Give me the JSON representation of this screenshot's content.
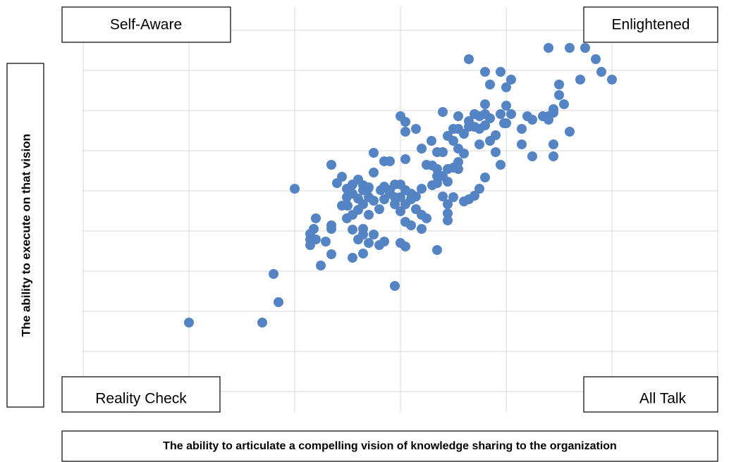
{
  "chart_data": {
    "type": "scatter",
    "xlabel": "The ability to articulate a compelling vision of knowledge sharing to the organization",
    "ylabel": "The ability to execute on that vision",
    "annotations": [
      "Self-Aware",
      "Enlightened",
      "Reality Check",
      "All Talk"
    ],
    "color": "#5584c4",
    "grid": true,
    "xlim": [
      0,
      900
    ],
    "xticks": [
      0,
      150,
      300,
      450,
      600,
      750,
      900
    ],
    "ylim": [
      0,
      513
    ],
    "yticks": [
      0,
      57,
      114,
      171,
      228,
      285,
      342,
      399,
      456,
      513
    ],
    "x": [
      150,
      254,
      277,
      270,
      300,
      442,
      337,
      352,
      322,
      322,
      322,
      330,
      327,
      330,
      344,
      352,
      352,
      360,
      352,
      367,
      374,
      382,
      390,
      397,
      404,
      412,
      412,
      427,
      435,
      442,
      450,
      457,
      450,
      457,
      457,
      472,
      480,
      494,
      510,
      487,
      502,
      495,
      480,
      472,
      465,
      457,
      450,
      442,
      435,
      427,
      420,
      412,
      405,
      397,
      390,
      382,
      375,
      367,
      374,
      382,
      390,
      397,
      405,
      422,
      427,
      435,
      442,
      450,
      457,
      465,
      472,
      480,
      487,
      480,
      465,
      457,
      450,
      457,
      427,
      420,
      412,
      405,
      397,
      397,
      382,
      382,
      374,
      397,
      390,
      405,
      517,
      517,
      517,
      510,
      502,
      510,
      517,
      525,
      532,
      532,
      540,
      532,
      525,
      517,
      525,
      532,
      540,
      532,
      547,
      555,
      562,
      570,
      570,
      577,
      570,
      562,
      555,
      547,
      562,
      577,
      585,
      585,
      592,
      570,
      562,
      555,
      547,
      540,
      525,
      517,
      502,
      495,
      502,
      510,
      547,
      570,
      592,
      607,
      577,
      600,
      600,
      607,
      592,
      600,
      622,
      630,
      637,
      652,
      660,
      667,
      682,
      667,
      675,
      675,
      660,
      690,
      637,
      622,
      667,
      667,
      705,
      727,
      735,
      750,
      660,
      690,
      712,
      502,
      597
    ],
    "values": [
      98,
      98,
      127,
      167,
      288,
      150,
      179,
      195,
      224,
      216,
      208,
      246,
      231,
      216,
      213,
      236,
      231,
      296,
      322,
      305,
      288,
      294,
      301,
      293,
      288,
      311,
      339,
      327,
      327,
      294,
      294,
      330,
      391,
      383,
      369,
      373,
      345,
      356,
      397,
      322,
      306,
      293,
      288,
      277,
      273,
      266,
      256,
      276,
      281,
      273,
      259,
      271,
      276,
      266,
      258,
      251,
      264,
      264,
      276,
      281,
      274,
      286,
      290,
      286,
      291,
      286,
      266,
      276,
      286,
      281,
      259,
      251,
      246,
      231,
      236,
      241,
      211,
      206,
      213,
      208,
      223,
      211,
      223,
      196,
      190,
      230,
      246,
      231,
      216,
      251,
      266,
      253,
      243,
      277,
      296,
      306,
      316,
      318,
      316,
      326,
      338,
      345,
      356,
      363,
      373,
      373,
      366,
      391,
      384,
      394,
      391,
      394,
      408,
      388,
      378,
      373,
      376,
      376,
      351,
      356,
      364,
      340,
      322,
      304,
      288,
      278,
      273,
      270,
      276,
      298,
      316,
      321,
      340,
      340,
      472,
      454,
      454,
      443,
      436,
      432,
      406,
      394,
      394,
      381,
      373,
      391,
      386,
      391,
      391,
      396,
      408,
      401,
      421,
      436,
      386,
      369,
      334,
      351,
      334,
      351,
      443,
      472,
      454,
      443,
      488,
      488,
      488,
      201,
      381
    ]
  }
}
